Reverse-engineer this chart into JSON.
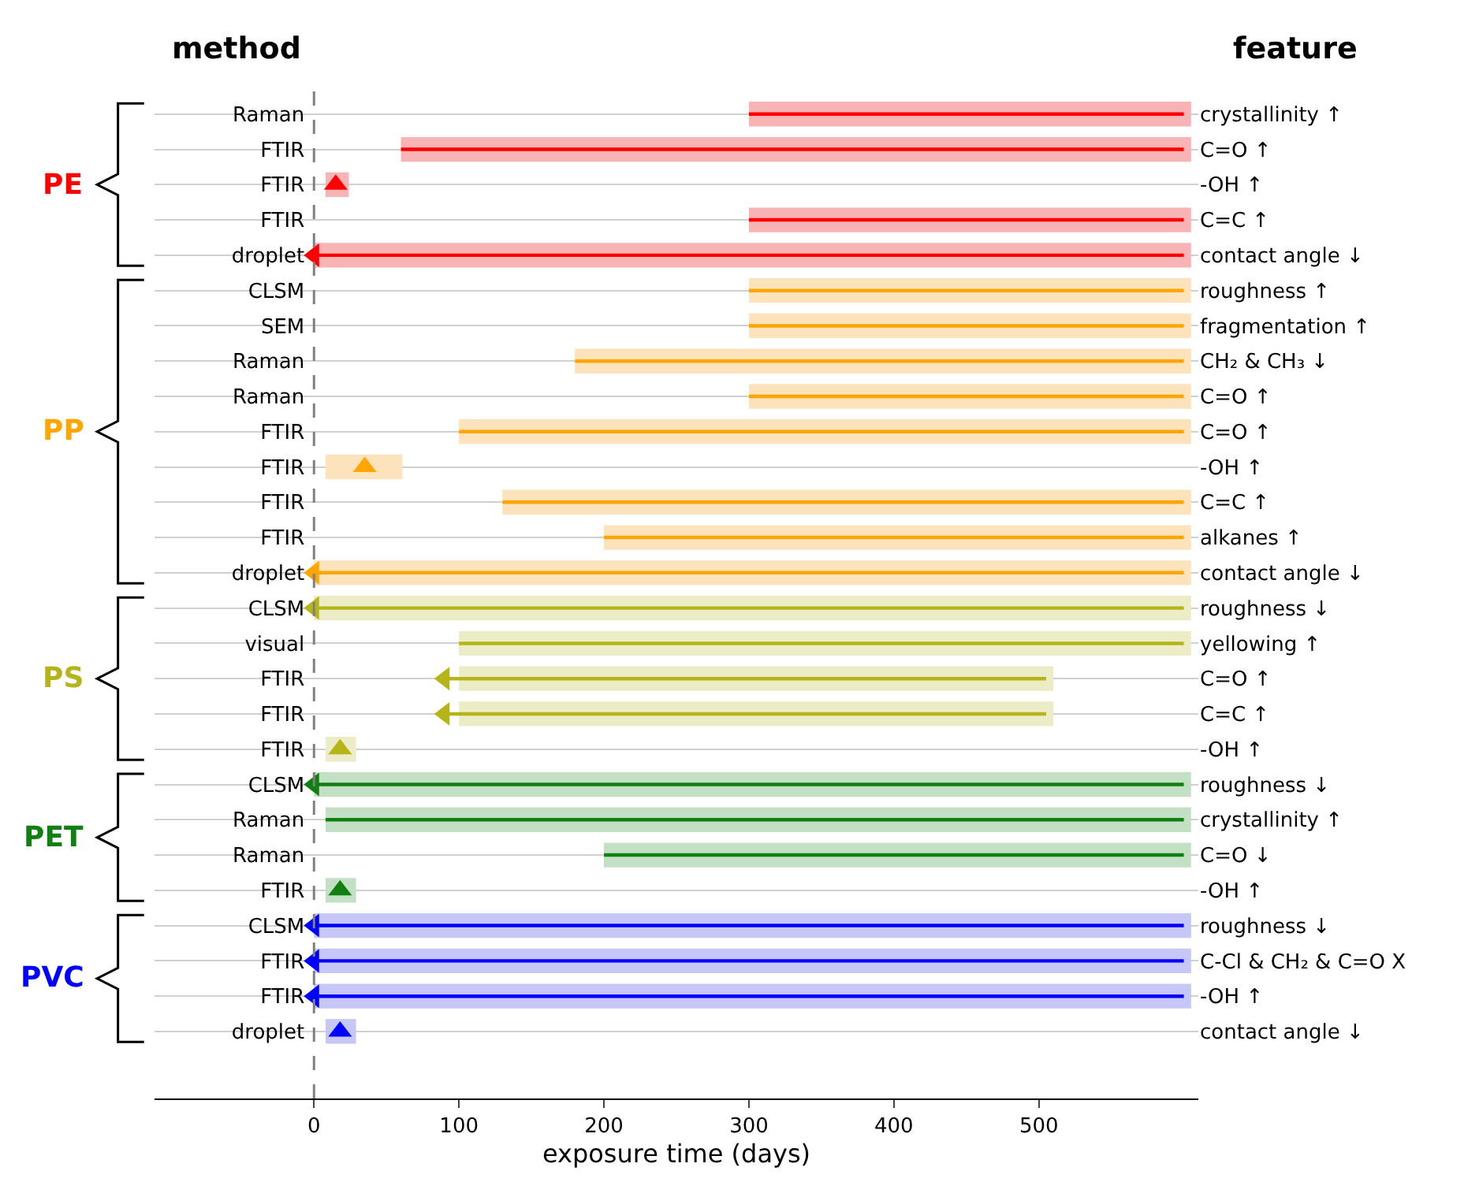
{
  "chart_data": {
    "type": "bar",
    "orientation": "horizontal",
    "ylabel": "method",
    "y2label": "feature",
    "xlabel": "exposure time (days)",
    "categories": [
      "Raman",
      "FTIR",
      "FTIR",
      "FTIR",
      "droplet",
      "CLSM",
      "SEM",
      "Raman",
      "Raman",
      "FTIR",
      "FTIR",
      "FTIR",
      "FTIR",
      "droplet",
      "CLSM",
      "visual",
      "FTIR",
      "FTIR",
      "FTIR",
      "CLSM",
      "Raman",
      "Raman",
      "FTIR",
      "CLSM",
      "FTIR",
      "FTIR",
      "droplet"
    ],
    "y2_categories": [
      "crystallinity ↑",
      "C=O ↑",
      "-OH ↑",
      "C=C ↑",
      "contact angle ↓",
      "roughness ↑",
      "fragmentation ↑",
      "CH₂ & CH₃ ↓",
      "C=O ↑",
      "C=O ↑",
      "-OH ↑",
      "C=C ↑",
      "alkanes ↑",
      "contact angle ↓",
      "roughness ↓",
      "yellowing ↑",
      "C=O ↑",
      "C=C ↑",
      "-OH ↑",
      "roughness ↓",
      "crystallinity ↑",
      "C=O ↓",
      "-OH ↑",
      "roughness ↓",
      "C-Cl & CH₂ & C=O X",
      "-OH ↑",
      "contact angle ↓"
    ],
    "xlim": [
      -110,
      610
    ],
    "xticks": [
      0,
      100,
      200,
      300,
      400,
      500
    ],
    "grid": "y",
    "ref_lines": [
      {
        "axis": "x",
        "value": 0,
        "color": "#808080",
        "line_style": "dashed"
      }
    ],
    "series": [
      {
        "name": "PE",
        "type": "bar",
        "marker": "triangle",
        "color": "#ff0000",
        "base": [
          300,
          60,
          null,
          300,
          0,
          null,
          null,
          null,
          null,
          null,
          null,
          null,
          null,
          null,
          null,
          null,
          null,
          null,
          null,
          null,
          null,
          null,
          null,
          null,
          null,
          null,
          null
        ],
        "values": [
          300,
          540,
          null,
          300,
          600,
          null,
          null,
          null,
          null,
          null,
          null,
          null,
          null,
          null,
          null,
          null,
          null,
          null,
          null,
          null,
          null,
          null,
          null,
          null,
          null,
          null,
          null
        ]
      },
      {
        "color": "#f8b4b4",
        "base": [
          300,
          60,
          8,
          300,
          0,
          null,
          null,
          null,
          null,
          null,
          null,
          null,
          null,
          null,
          null,
          null,
          null,
          null,
          null,
          null,
          null,
          null,
          null,
          null,
          null,
          null,
          null
        ],
        "values": [
          305,
          545,
          16,
          305,
          605,
          null,
          null,
          null,
          null,
          null,
          null,
          null,
          null,
          null,
          null,
          null,
          null,
          null,
          null,
          null,
          null,
          null,
          null,
          null,
          null,
          null,
          null
        ]
      },
      {
        "type": "scatter",
        "marker": "triangle",
        "color": "#ff0000",
        "values": [
          null,
          null,
          15,
          null,
          0,
          null,
          null,
          null,
          null,
          null,
          null,
          null,
          null,
          null,
          null,
          null,
          null,
          null,
          null,
          null,
          null,
          null,
          null,
          null,
          null,
          null,
          null
        ]
      },
      {
        "name": "PP",
        "type": "bar",
        "marker": "triangle",
        "color": "#ffa500",
        "base": [
          null,
          null,
          null,
          null,
          null,
          300,
          300,
          180,
          300,
          100,
          null,
          130,
          200,
          0,
          null,
          null,
          null,
          null,
          null,
          null,
          null,
          null,
          null,
          null,
          null,
          null,
          null
        ],
        "values": [
          null,
          null,
          null,
          null,
          null,
          300,
          300,
          420,
          300,
          500,
          null,
          470,
          400,
          600,
          null,
          null,
          null,
          null,
          null,
          null,
          null,
          null,
          null,
          null,
          null,
          null,
          null
        ]
      },
      {
        "color": "#fde3bb",
        "base": [
          null,
          null,
          null,
          null,
          null,
          300,
          300,
          180,
          300,
          100,
          8,
          130,
          200,
          0,
          null,
          null,
          null,
          null,
          null,
          null,
          null,
          null,
          null,
          null,
          null,
          null,
          null
        ],
        "values": [
          null,
          null,
          null,
          null,
          null,
          305,
          305,
          425,
          305,
          505,
          53,
          475,
          405,
          605,
          null,
          null,
          null,
          null,
          null,
          null,
          null,
          null,
          null,
          null,
          null,
          null,
          null
        ]
      },
      {
        "type": "scatter",
        "marker": "triangle",
        "color": "#ffa500",
        "values": [
          null,
          null,
          null,
          null,
          null,
          null,
          null,
          null,
          null,
          null,
          35,
          null,
          null,
          0,
          null,
          null,
          null,
          null,
          null,
          null,
          null,
          null,
          null,
          null,
          null,
          null,
          null
        ]
      },
      {
        "name": "PS",
        "type": "bar",
        "marker": "triangle",
        "color": "#b5b51a",
        "base": [
          null,
          null,
          null,
          null,
          null,
          null,
          null,
          null,
          null,
          null,
          null,
          null,
          null,
          null,
          0,
          100,
          90,
          90,
          null,
          null,
          null,
          null,
          null,
          null,
          null,
          null,
          null
        ],
        "values": [
          null,
          null,
          null,
          null,
          null,
          null,
          null,
          null,
          null,
          null,
          null,
          null,
          null,
          null,
          600,
          500,
          415,
          415,
          null,
          null,
          null,
          null,
          null,
          null,
          null,
          null,
          null
        ]
      },
      {
        "color": "#ecedc6",
        "base": [
          null,
          null,
          null,
          null,
          null,
          null,
          null,
          null,
          null,
          null,
          null,
          null,
          null,
          null,
          0,
          100,
          100,
          100,
          8,
          null,
          null,
          null,
          null,
          null,
          null,
          null,
          null
        ],
        "values": [
          null,
          null,
          null,
          null,
          null,
          null,
          null,
          null,
          null,
          null,
          null,
          null,
          null,
          null,
          605,
          505,
          410,
          410,
          21,
          null,
          null,
          null,
          null,
          null,
          null,
          null,
          null
        ]
      },
      {
        "type": "scatter",
        "marker": "triangle",
        "color": "#b5b51a",
        "values": [
          null,
          null,
          null,
          null,
          null,
          null,
          null,
          null,
          null,
          null,
          null,
          null,
          null,
          null,
          0,
          null,
          90,
          90,
          18,
          null,
          null,
          null,
          null,
          null,
          null,
          null,
          null
        ]
      },
      {
        "name": "PET",
        "type": "bar",
        "marker": "triangle",
        "color": "#108010",
        "base": [
          null,
          null,
          null,
          null,
          null,
          null,
          null,
          null,
          null,
          null,
          null,
          null,
          null,
          null,
          null,
          null,
          null,
          null,
          null,
          0,
          8,
          200,
          null,
          null,
          null,
          null,
          null
        ],
        "values": [
          null,
          null,
          null,
          null,
          null,
          null,
          null,
          null,
          null,
          null,
          null,
          null,
          null,
          null,
          null,
          null,
          null,
          null,
          null,
          600,
          592,
          400,
          null,
          null,
          null,
          null,
          null
        ]
      },
      {
        "color": "#c4e0c4",
        "base": [
          null,
          null,
          null,
          null,
          null,
          null,
          null,
          null,
          null,
          null,
          null,
          null,
          null,
          null,
          null,
          null,
          null,
          null,
          null,
          0,
          8,
          200,
          8,
          null,
          null,
          null,
          null
        ],
        "values": [
          null,
          null,
          null,
          null,
          null,
          null,
          null,
          null,
          null,
          null,
          null,
          null,
          null,
          null,
          null,
          null,
          null,
          null,
          null,
          605,
          597,
          405,
          21,
          null,
          null,
          null,
          null
        ]
      },
      {
        "type": "scatter",
        "marker": "triangle",
        "color": "#108010",
        "values": [
          null,
          null,
          null,
          null,
          null,
          null,
          null,
          null,
          null,
          null,
          null,
          null,
          null,
          null,
          null,
          null,
          null,
          null,
          null,
          0,
          null,
          null,
          18,
          null,
          null,
          null,
          null
        ]
      },
      {
        "name": "PVC",
        "type": "bar",
        "marker": "triangle",
        "color": "#0000ff",
        "base": [
          null,
          null,
          null,
          null,
          null,
          null,
          null,
          null,
          null,
          null,
          null,
          null,
          null,
          null,
          null,
          null,
          null,
          null,
          null,
          null,
          null,
          null,
          null,
          0,
          0,
          0,
          null
        ],
        "values": [
          null,
          null,
          null,
          null,
          null,
          null,
          null,
          null,
          null,
          null,
          null,
          null,
          null,
          null,
          null,
          null,
          null,
          null,
          null,
          null,
          null,
          null,
          null,
          600,
          600,
          600,
          null
        ]
      },
      {
        "color": "#c6c6f7",
        "base": [
          null,
          null,
          null,
          null,
          null,
          null,
          null,
          null,
          null,
          null,
          null,
          null,
          null,
          null,
          null,
          null,
          null,
          null,
          null,
          null,
          null,
          null,
          null,
          0,
          0,
          0,
          8
        ],
        "values": [
          null,
          null,
          null,
          null,
          null,
          null,
          null,
          null,
          null,
          null,
          null,
          null,
          null,
          null,
          null,
          null,
          null,
          null,
          null,
          null,
          null,
          null,
          null,
          605,
          605,
          605,
          21
        ]
      },
      {
        "type": "scatter",
        "marker": "triangle",
        "color": "#0000ff",
        "values": [
          null,
          null,
          null,
          null,
          null,
          null,
          null,
          null,
          null,
          null,
          null,
          null,
          null,
          null,
          null,
          null,
          null,
          null,
          null,
          null,
          null,
          null,
          null,
          0,
          0,
          0,
          18
        ]
      }
    ]
  }
}
